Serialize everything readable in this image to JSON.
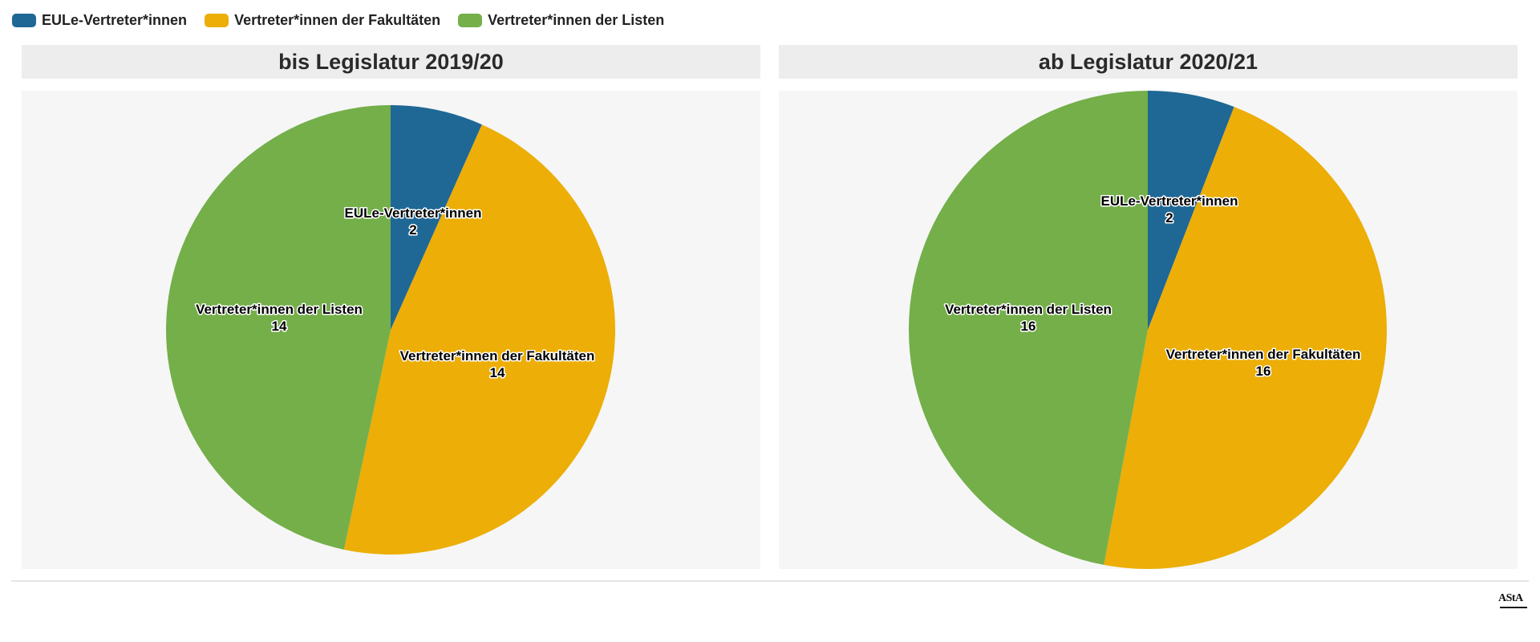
{
  "legend": {
    "items": [
      {
        "label": "EULe-Vertreter*innen",
        "color": "#1f6896"
      },
      {
        "label": "Vertreter*innen der Fakultäten",
        "color": "#ecae07"
      },
      {
        "label": "Vertreter*innen der Listen",
        "color": "#74af4a"
      }
    ]
  },
  "logo": {
    "text": "AStA"
  },
  "chart_data": [
    {
      "type": "pie",
      "title": "bis Legislatur 2019/20",
      "slices": [
        {
          "label": "EULe-Vertreter*innen",
          "value": 2,
          "color": "#1f6896"
        },
        {
          "label": "Vertreter*innen der Fakultäten",
          "value": 14,
          "color": "#ecae07"
        },
        {
          "label": "Vertreter*innen der Listen",
          "value": 14,
          "color": "#74af4a"
        }
      ],
      "legend_position": "top-left"
    },
    {
      "type": "pie",
      "title": "ab Legislatur 2020/21",
      "slices": [
        {
          "label": "EULe-Vertreter*innen",
          "value": 2,
          "color": "#1f6896"
        },
        {
          "label": "Vertreter*innen der Fakultäten",
          "value": 16,
          "color": "#ecae07"
        },
        {
          "label": "Vertreter*innen der Listen",
          "value": 16,
          "color": "#74af4a"
        }
      ],
      "legend_position": "top-left"
    }
  ]
}
